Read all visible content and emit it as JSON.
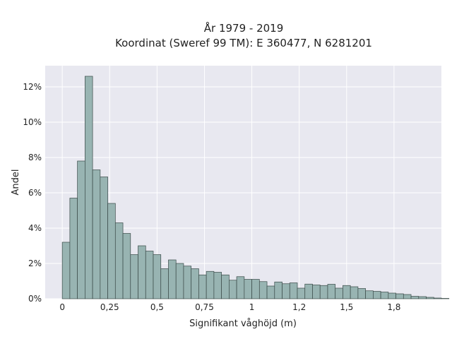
{
  "chart_data": {
    "type": "bar",
    "subtype": "histogram",
    "title": "År 1979 - 2019",
    "subtitle": "Koordinat (Sweref 99 TM): E 360477, N 6281201",
    "xlabel": "Signifikant våghöjd (m)",
    "ylabel": "Andel",
    "xlim": [
      -0.09,
      2.0
    ],
    "ylim": [
      0,
      13.2
    ],
    "x_ticks": [
      0,
      0.25,
      0.5,
      0.75,
      1,
      1.25,
      1.5,
      1.75
    ],
    "x_tick_labels": [
      "0",
      "0,25",
      "0,5",
      "0,75",
      "1",
      "1,2",
      "1,5",
      "1,8"
    ],
    "y_ticks": [
      0,
      2,
      4,
      6,
      8,
      10,
      12
    ],
    "y_tick_labels": [
      "0%",
      "2%",
      "4%",
      "6%",
      "8%",
      "10%",
      "12%"
    ],
    "grid": true,
    "colors": {
      "bar_fill": "#98b4b2",
      "bar_edge": "#3a4a48",
      "plot_bg": "#e8e8f0",
      "grid": "#ffffff"
    },
    "bin_start": 0,
    "bin_width": 0.04,
    "values": [
      3.2,
      5.7,
      7.8,
      12.6,
      7.3,
      6.9,
      5.4,
      4.3,
      3.7,
      2.5,
      3.0,
      2.7,
      2.5,
      1.7,
      2.2,
      2.0,
      1.85,
      1.7,
      1.35,
      1.55,
      1.5,
      1.35,
      1.05,
      1.25,
      1.1,
      1.1,
      0.97,
      0.72,
      0.95,
      0.85,
      0.9,
      0.6,
      0.83,
      0.78,
      0.75,
      0.82,
      0.6,
      0.75,
      0.68,
      0.58,
      0.45,
      0.42,
      0.38,
      0.32,
      0.28,
      0.24,
      0.14,
      0.12,
      0.08,
      0.04,
      0.02
    ]
  }
}
